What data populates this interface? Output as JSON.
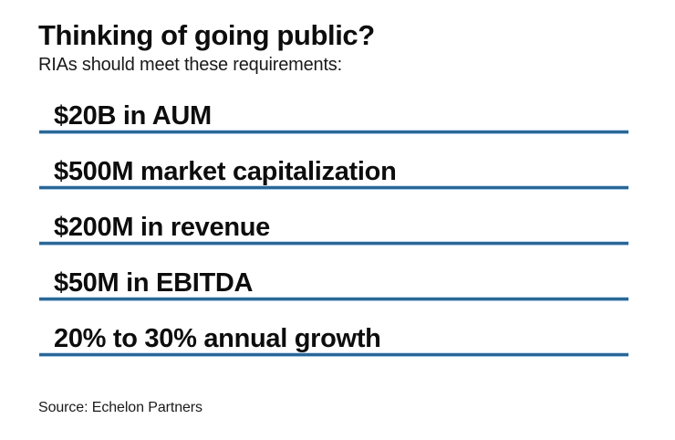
{
  "chart_data": {
    "type": "table",
    "title": "Thinking of going public?",
    "subtitle": "RIAs should meet these requirements:",
    "rows": [
      "$20B in AUM",
      "$500M market capitalization",
      "$200M in revenue",
      "$50M in EBITDA",
      "20% to 30% annual growth"
    ],
    "source": "Source: Echelon Partners",
    "layout_hints": {
      "grid": "horizontal rules under each row",
      "legend": "none"
    }
  },
  "colors": {
    "rule_blue": "#2b6795",
    "text_black": "#0d0d0d"
  }
}
